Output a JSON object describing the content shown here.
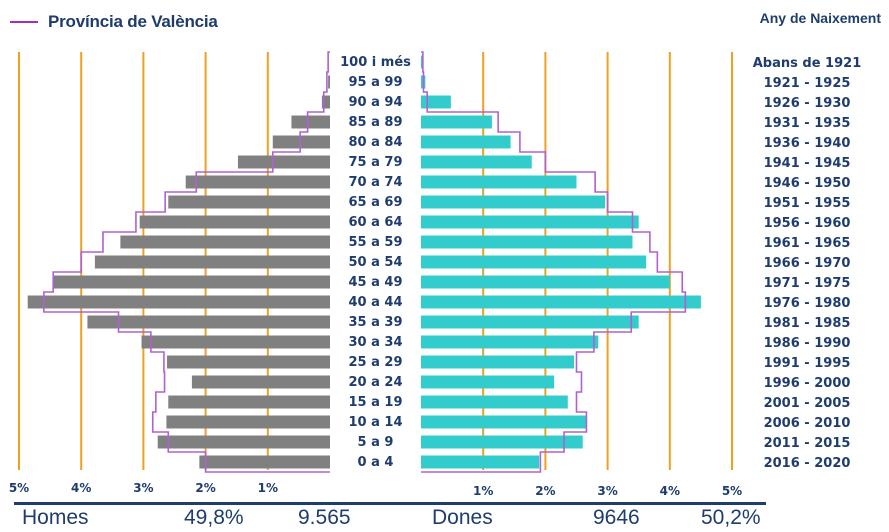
{
  "legend": {
    "label": "Província de València",
    "color": "#9b30c8"
  },
  "birth_axis_title": "Any de Naixement",
  "footer": {
    "men_label": "Homes",
    "men_pct": "49,8%",
    "men_count": "9.565",
    "women_label": "Dones",
    "women_count": "9646",
    "women_pct": "50,2%"
  },
  "colors": {
    "men": "#808080",
    "women": "#33cccc",
    "grid": "#f0a020",
    "outline": "#b060d0",
    "text": "#1f3c6e"
  },
  "chart_data": {
    "type": "bar",
    "orientation": "horizontal",
    "categories": [
      "100 i més",
      "95 a 99",
      "90 a 94",
      "85 a 89",
      "80 a 84",
      "75 a 79",
      "70 a 74",
      "65 a 69",
      "60 a 64",
      "55 a 59",
      "50 a 54",
      "45 a 49",
      "40 a 44",
      "35 a 39",
      "30 a 34",
      "25 a 29",
      "20 a 24",
      "15 a 19",
      "10 a 14",
      "5 a 9",
      "0 a 4"
    ],
    "birth_years": [
      "Abans de 1921",
      "1921 - 1925",
      "1926 - 1930",
      "1931 - 1935",
      "1936 - 1940",
      "1941 - 1945",
      "1946 - 1950",
      "1951 - 1955",
      "1956 - 1960",
      "1961 - 1965",
      "1966 - 1970",
      "1971 - 1975",
      "1976 - 1980",
      "1981 - 1985",
      "1986 - 1990",
      "1991 - 1995",
      "1996 - 2000",
      "2001 - 2005",
      "2006 - 2010",
      "2011 - 2015",
      "2016 - 2020"
    ],
    "series": [
      {
        "side": "left",
        "values": [
          0.0,
          0.03,
          0.13,
          0.62,
          0.92,
          1.48,
          2.32,
          2.6,
          3.06,
          3.37,
          3.78,
          4.45,
          4.86,
          3.9,
          3.03,
          2.62,
          2.22,
          2.6,
          2.63,
          2.77,
          2.1
        ]
      },
      {
        "side": "right",
        "values": [
          0.02,
          0.07,
          0.48,
          1.14,
          1.44,
          1.78,
          2.5,
          2.96,
          3.5,
          3.4,
          3.62,
          4.0,
          4.5,
          3.5,
          2.85,
          2.46,
          2.14,
          2.36,
          2.66,
          2.6,
          1.9
        ]
      },
      {
        "name": "Província de València",
        "side": "left",
        "type": "outline",
        "values": [
          0.03,
          0.05,
          0.1,
          0.36,
          0.48,
          0.92,
          2.15,
          2.65,
          3.12,
          3.65,
          4.0,
          4.45,
          4.6,
          3.4,
          2.88,
          2.67,
          2.66,
          2.8,
          2.85,
          2.6,
          2.0
        ]
      },
      {
        "name": "Província de València",
        "side": "right",
        "type": "outline",
        "values": [
          0.03,
          0.04,
          0.1,
          1.24,
          1.59,
          2.0,
          2.8,
          3.0,
          3.4,
          3.68,
          3.8,
          4.2,
          4.25,
          3.38,
          2.78,
          2.5,
          2.58,
          2.5,
          2.66,
          2.3,
          1.92
        ]
      }
    ],
    "x_ticks_left": [
      "5%",
      "4%",
      "3%",
      "2%",
      "1%"
    ],
    "x_ticks_right": [
      "1%",
      "2%",
      "3%",
      "4%",
      "5%"
    ],
    "xlim": [
      0,
      5
    ]
  }
}
